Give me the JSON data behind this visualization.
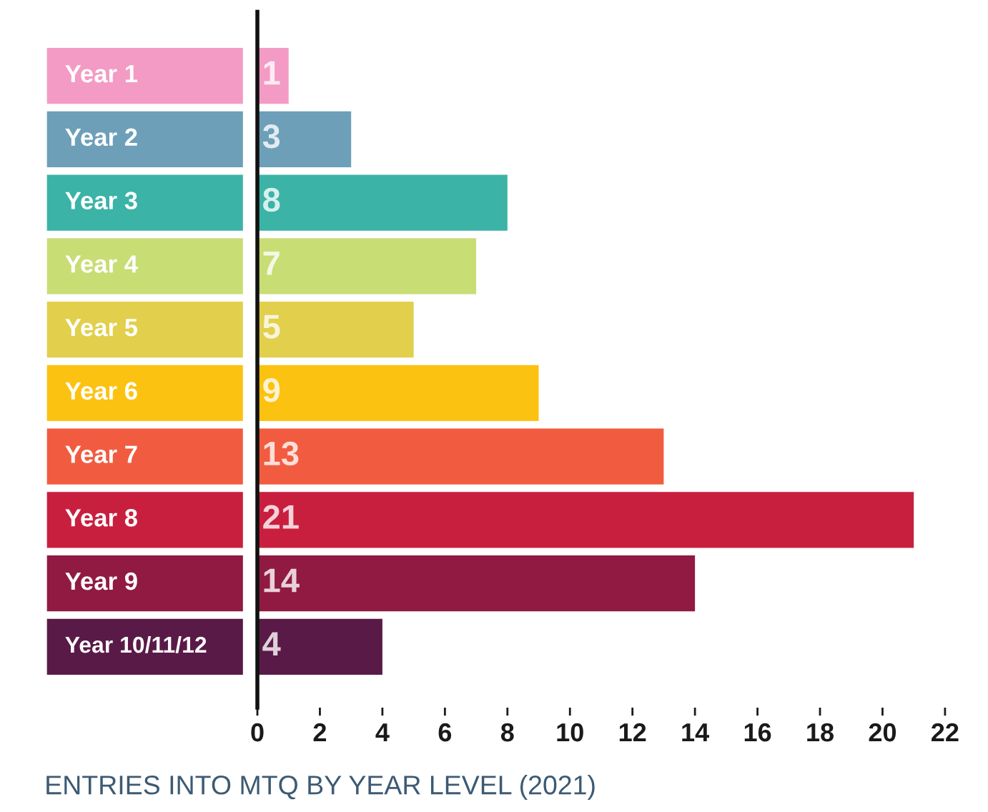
{
  "chart_data": {
    "type": "bar",
    "orientation": "horizontal",
    "title": "ENTRIES INTO MTQ BY YEAR LEVEL (2021)",
    "categories": [
      "Year 1",
      "Year 2",
      "Year 3",
      "Year 4",
      "Year 5",
      "Year 6",
      "Year 7",
      "Year 8",
      "Year 9",
      "Year 10/11/12"
    ],
    "values": [
      1,
      3,
      8,
      7,
      5,
      9,
      13,
      21,
      14,
      4
    ],
    "colors": [
      "#f39bc4",
      "#6d9fb8",
      "#3bb3a6",
      "#c8dd74",
      "#e2cf4c",
      "#fcc211",
      "#f15c40",
      "#c91f3f",
      "#901a42",
      "#5a1a47"
    ],
    "xlim": [
      0,
      22
    ],
    "xticks": [
      0,
      2,
      4,
      6,
      8,
      10,
      12,
      14,
      16,
      18,
      20,
      22
    ],
    "data_labels": true,
    "grid": false,
    "legend": false
  }
}
